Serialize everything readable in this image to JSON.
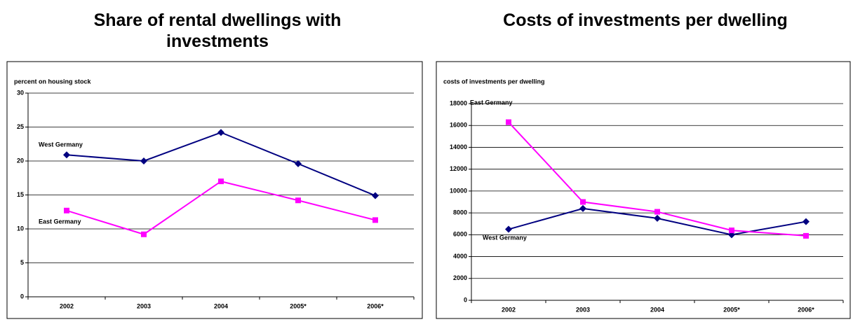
{
  "chart_data": [
    {
      "type": "line",
      "title": "Share of rental dwellings with investments",
      "y_label": "percent on housing stock",
      "categories": [
        "2002",
        "2003",
        "2004",
        "2005*",
        "2006*"
      ],
      "series": [
        {
          "name": "West Germany",
          "color": "#000080",
          "marker": "diamond",
          "values": [
            20.9,
            20.0,
            24.2,
            19.6,
            14.9
          ]
        },
        {
          "name": "East Germany",
          "color": "#ff00ff",
          "marker": "square",
          "values": [
            12.7,
            9.2,
            17.0,
            14.2,
            11.3
          ]
        }
      ],
      "ylim": [
        0,
        30
      ],
      "yticks": [
        0,
        5,
        10,
        15,
        20,
        25,
        30
      ],
      "grid": true
    },
    {
      "type": "line",
      "title": "Costs of investments per dwelling",
      "y_label": "costs of investments per dwelling",
      "categories": [
        "2002",
        "2003",
        "2004",
        "2005*",
        "2006*"
      ],
      "series": [
        {
          "name": "West Germany",
          "color": "#000080",
          "marker": "diamond",
          "values": [
            6500,
            8400,
            7500,
            6000,
            7200
          ]
        },
        {
          "name": "East Germany",
          "color": "#ff00ff",
          "marker": "square",
          "values": [
            16300,
            9000,
            8100,
            6400,
            5900
          ]
        }
      ],
      "ylim": [
        0,
        18000
      ],
      "yticks": [
        0,
        2000,
        4000,
        6000,
        8000,
        10000,
        12000,
        14000,
        16000,
        18000
      ],
      "grid": true
    }
  ]
}
